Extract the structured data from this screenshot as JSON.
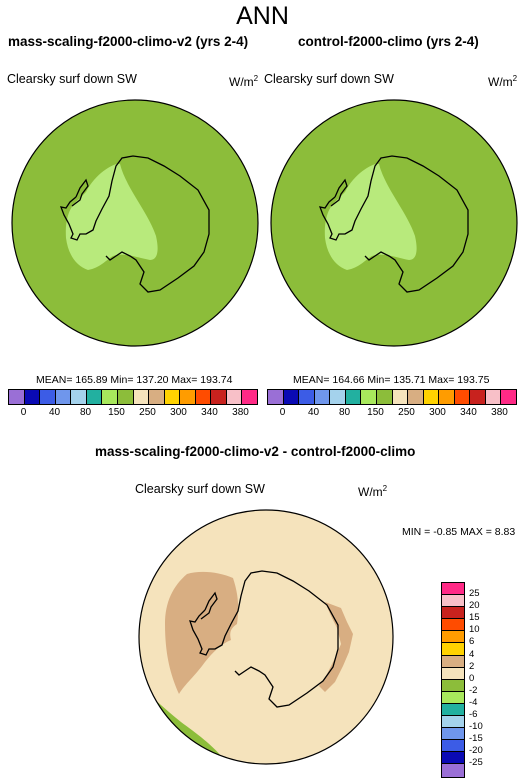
{
  "page": {
    "title": "ANN"
  },
  "panels": [
    {
      "title": "mass-scaling-f2000-climo-v2 (yrs 2-4)",
      "variable": "Clearsky surf down SW",
      "units": "W/m",
      "units_sup": "2",
      "stats": "MEAN= 165.89  Min= 137.20  Max= 193.74"
    },
    {
      "title": "control-f2000-climo (yrs 2-4)",
      "variable": "Clearsky surf down SW",
      "units": "W/m",
      "units_sup": "2",
      "stats": "MEAN= 164.66  Min= 135.71  Max= 193.75"
    }
  ],
  "colorbar": {
    "colors": [
      "#9a6fd6",
      "#0a0ab4",
      "#3c5ce6",
      "#6f96ec",
      "#a4d2ec",
      "#22b0a0",
      "#a8e85c",
      "#8cbd3a",
      "#f5e3bc",
      "#d8ae82",
      "#ffd200",
      "#ff9c00",
      "#ff4c00",
      "#c8221e",
      "#f8c0c8",
      "#ff2a86"
    ],
    "ticks": [
      "0",
      "40",
      "80",
      "150",
      "250",
      "300",
      "340",
      "380"
    ]
  },
  "diff": {
    "title": "mass-scaling-f2000-climo-v2 - control-f2000-climo",
    "variable": "Clearsky surf down SW",
    "units": "W/m",
    "units_sup": "2",
    "stats": "MIN =  -0.85 MAX =   8.83",
    "colorbar": {
      "colors": [
        "#ff2a86",
        "#f8c0c8",
        "#c8221e",
        "#ff4c00",
        "#ff9c00",
        "#ffd200",
        "#d8ae82",
        "#f5e3bc",
        "#8cbd3a",
        "#a8e85c",
        "#22b0a0",
        "#a4d2ec",
        "#6f96ec",
        "#3c5ce6",
        "#0a0ab4",
        "#9a6fd6"
      ],
      "ticks": [
        "25",
        "20",
        "15",
        "10",
        "6",
        "4",
        "2",
        "0",
        "-2",
        "-4",
        "-6",
        "-10",
        "-15",
        "-20",
        "-25"
      ]
    }
  },
  "map_colors": {
    "ocean_top": "#8cbd3a",
    "interior_top": "#b8ea7c",
    "ocean_diff": "#f5e3bc",
    "land_diff": "#d8ae82",
    "edge_diff": "#8cbd3a",
    "coast": "#000000"
  }
}
